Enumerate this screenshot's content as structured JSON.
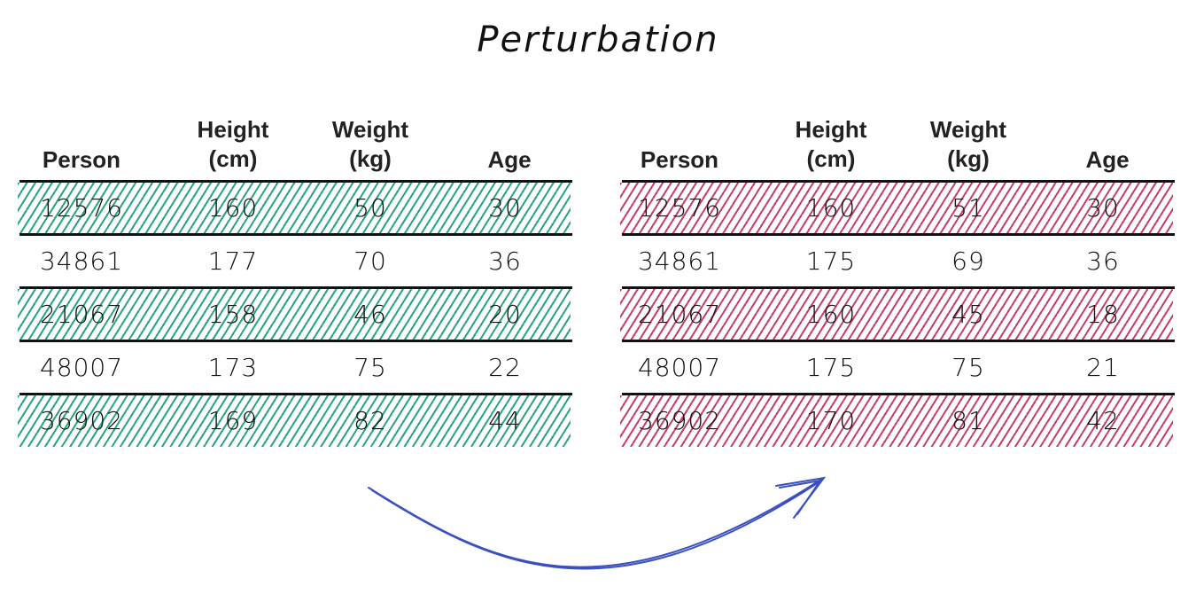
{
  "title": "Perturbation",
  "headers": {
    "person": "Person",
    "height_line1": "Height",
    "height_line2": "(cm)",
    "weight_line1": "Weight",
    "weight_line2": "(kg)",
    "age": "Age"
  },
  "original": {
    "highlight_color": "#27a486",
    "rows": [
      {
        "person": "12576",
        "height": "160",
        "weight": "50",
        "age": "30",
        "highlighted": true
      },
      {
        "person": "34861",
        "height": "177",
        "weight": "70",
        "age": "36",
        "highlighted": false
      },
      {
        "person": "21067",
        "height": "158",
        "weight": "46",
        "age": "20",
        "highlighted": true
      },
      {
        "person": "48007",
        "height": "173",
        "weight": "75",
        "age": "22",
        "highlighted": false
      },
      {
        "person": "36902",
        "height": "169",
        "weight": "82",
        "age": "44",
        "highlighted": true
      }
    ]
  },
  "perturbed": {
    "highlight_color": "#c83c70",
    "rows": [
      {
        "person": "12576",
        "height": "160",
        "weight": "51",
        "age": "30",
        "highlighted": true
      },
      {
        "person": "34861",
        "height": "175",
        "weight": "69",
        "age": "36",
        "highlighted": false
      },
      {
        "person": "21067",
        "height": "160",
        "weight": "45",
        "age": "18",
        "highlighted": true
      },
      {
        "person": "48007",
        "height": "175",
        "weight": "75",
        "age": "21",
        "highlighted": false
      },
      {
        "person": "36902",
        "height": "170",
        "weight": "81",
        "age": "42",
        "highlighted": true
      }
    ]
  },
  "arrow_color": "#3a4fc0"
}
